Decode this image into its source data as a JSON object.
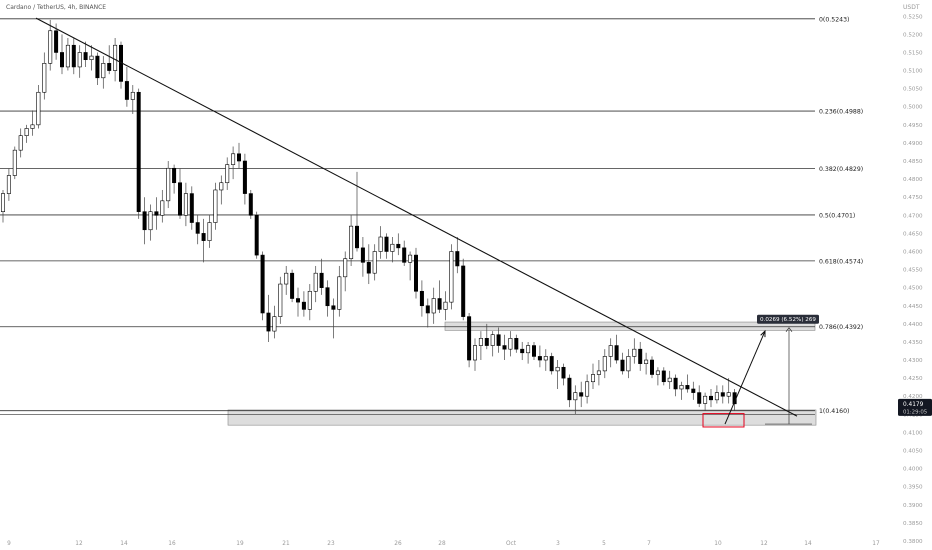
{
  "header": {
    "title": "Cardano / TetherUS, 4h, BINANCE",
    "currency": "USDT"
  },
  "colors": {
    "background": "#ffffff",
    "candle": "#000000",
    "wick": "#444444",
    "level_line": "#333333",
    "zone_fill": "#d9d9d9",
    "zone_stroke": "#888888",
    "target_box": "#e3001b",
    "axis_text": "#9a9a9a",
    "price_badge_bg": "#131722",
    "measure_label_bg": "#2a2e39"
  },
  "chart_data": {
    "type": "candlestick",
    "x_axis_labels": [
      "9",
      "12",
      "14",
      "16",
      "19",
      "21",
      "23",
      "26",
      "28",
      "Oct",
      "3",
      "5",
      "7",
      "10",
      "12",
      "14",
      "17"
    ],
    "y_axis": {
      "range": [
        0.3775,
        0.5295
      ],
      "ticks": [
        "0.5250",
        "0.5200",
        "0.5150",
        "0.5100",
        "0.5050",
        "0.5000",
        "0.4950",
        "0.4900",
        "0.4850",
        "0.4800",
        "0.4750",
        "0.4700",
        "0.4650",
        "0.4600",
        "0.4550",
        "0.4500",
        "0.4450",
        "0.4400",
        "0.4350",
        "0.4300",
        "0.4250",
        "0.4200",
        "0.4150",
        "0.4100",
        "0.4050",
        "0.4000",
        "0.3950",
        "0.3900",
        "0.3850",
        "0.3800"
      ]
    },
    "fib_levels": [
      {
        "label": "0(0.5243)",
        "value": 0.5243
      },
      {
        "label": "0.236(0.4988)",
        "value": 0.4988
      },
      {
        "label": "0.382(0.4829)",
        "value": 0.4829
      },
      {
        "label": "0.5(0.4701)",
        "value": 0.4701
      },
      {
        "label": "0.618(0.4574)",
        "value": 0.4574
      },
      {
        "label": "0.786(0.4392)",
        "value": 0.4392
      },
      {
        "label": "1(0.4160)",
        "value": 0.416
      }
    ],
    "current_price": {
      "value": "0.4179",
      "countdown": "01:29:05"
    },
    "measure": {
      "label": "0.0269 (6.52%) 269",
      "from": 0.4123,
      "to": 0.4392
    },
    "resistance_zone": {
      "low": 0.4382,
      "high": 0.4405
    },
    "support_zone": {
      "low": 0.412,
      "high": 0.4162
    },
    "candles": [
      {
        "o": 0.471,
        "h": 0.477,
        "l": 0.468,
        "c": 0.476
      },
      {
        "o": 0.476,
        "h": 0.483,
        "l": 0.474,
        "c": 0.481
      },
      {
        "o": 0.481,
        "h": 0.489,
        "l": 0.48,
        "c": 0.488
      },
      {
        "o": 0.488,
        "h": 0.494,
        "l": 0.486,
        "c": 0.492
      },
      {
        "o": 0.492,
        "h": 0.495,
        "l": 0.49,
        "c": 0.494
      },
      {
        "o": 0.494,
        "h": 0.499,
        "l": 0.492,
        "c": 0.495
      },
      {
        "o": 0.495,
        "h": 0.506,
        "l": 0.494,
        "c": 0.504
      },
      {
        "o": 0.504,
        "h": 0.515,
        "l": 0.502,
        "c": 0.512
      },
      {
        "o": 0.512,
        "h": 0.524,
        "l": 0.51,
        "c": 0.521
      },
      {
        "o": 0.521,
        "h": 0.523,
        "l": 0.513,
        "c": 0.515
      },
      {
        "o": 0.515,
        "h": 0.52,
        "l": 0.509,
        "c": 0.511
      },
      {
        "o": 0.511,
        "h": 0.519,
        "l": 0.51,
        "c": 0.517
      },
      {
        "o": 0.517,
        "h": 0.519,
        "l": 0.509,
        "c": 0.511
      },
      {
        "o": 0.511,
        "h": 0.517,
        "l": 0.508,
        "c": 0.515
      },
      {
        "o": 0.515,
        "h": 0.518,
        "l": 0.511,
        "c": 0.513
      },
      {
        "o": 0.513,
        "h": 0.517,
        "l": 0.51,
        "c": 0.514
      },
      {
        "o": 0.514,
        "h": 0.515,
        "l": 0.506,
        "c": 0.508
      },
      {
        "o": 0.508,
        "h": 0.514,
        "l": 0.505,
        "c": 0.512
      },
      {
        "o": 0.512,
        "h": 0.517,
        "l": 0.509,
        "c": 0.51
      },
      {
        "o": 0.51,
        "h": 0.519,
        "l": 0.507,
        "c": 0.517
      },
      {
        "o": 0.517,
        "h": 0.518,
        "l": 0.505,
        "c": 0.507
      },
      {
        "o": 0.507,
        "h": 0.511,
        "l": 0.5,
        "c": 0.502
      },
      {
        "o": 0.502,
        "h": 0.506,
        "l": 0.498,
        "c": 0.504
      },
      {
        "o": 0.504,
        "h": 0.505,
        "l": 0.469,
        "c": 0.471
      },
      {
        "o": 0.471,
        "h": 0.475,
        "l": 0.462,
        "c": 0.466
      },
      {
        "o": 0.466,
        "h": 0.473,
        "l": 0.463,
        "c": 0.471
      },
      {
        "o": 0.471,
        "h": 0.475,
        "l": 0.466,
        "c": 0.47
      },
      {
        "o": 0.47,
        "h": 0.477,
        "l": 0.468,
        "c": 0.474
      },
      {
        "o": 0.474,
        "h": 0.485,
        "l": 0.472,
        "c": 0.483
      },
      {
        "o": 0.483,
        "h": 0.484,
        "l": 0.476,
        "c": 0.479
      },
      {
        "o": 0.479,
        "h": 0.483,
        "l": 0.469,
        "c": 0.47
      },
      {
        "o": 0.47,
        "h": 0.479,
        "l": 0.467,
        "c": 0.476
      },
      {
        "o": 0.476,
        "h": 0.478,
        "l": 0.466,
        "c": 0.468
      },
      {
        "o": 0.468,
        "h": 0.47,
        "l": 0.462,
        "c": 0.465
      },
      {
        "o": 0.465,
        "h": 0.469,
        "l": 0.457,
        "c": 0.463
      },
      {
        "o": 0.463,
        "h": 0.47,
        "l": 0.461,
        "c": 0.468
      },
      {
        "o": 0.468,
        "h": 0.479,
        "l": 0.466,
        "c": 0.477
      },
      {
        "o": 0.477,
        "h": 0.481,
        "l": 0.473,
        "c": 0.479
      },
      {
        "o": 0.479,
        "h": 0.486,
        "l": 0.477,
        "c": 0.484
      },
      {
        "o": 0.484,
        "h": 0.489,
        "l": 0.48,
        "c": 0.487
      },
      {
        "o": 0.487,
        "h": 0.49,
        "l": 0.483,
        "c": 0.485
      },
      {
        "o": 0.485,
        "h": 0.487,
        "l": 0.473,
        "c": 0.476
      },
      {
        "o": 0.476,
        "h": 0.477,
        "l": 0.469,
        "c": 0.47
      },
      {
        "o": 0.47,
        "h": 0.471,
        "l": 0.458,
        "c": 0.459
      },
      {
        "o": 0.459,
        "h": 0.46,
        "l": 0.441,
        "c": 0.443
      },
      {
        "o": 0.443,
        "h": 0.448,
        "l": 0.435,
        "c": 0.438
      },
      {
        "o": 0.438,
        "h": 0.445,
        "l": 0.436,
        "c": 0.442
      },
      {
        "o": 0.442,
        "h": 0.453,
        "l": 0.44,
        "c": 0.451
      },
      {
        "o": 0.451,
        "h": 0.456,
        "l": 0.448,
        "c": 0.454
      },
      {
        "o": 0.454,
        "h": 0.455,
        "l": 0.446,
        "c": 0.447
      },
      {
        "o": 0.447,
        "h": 0.45,
        "l": 0.442,
        "c": 0.446
      },
      {
        "o": 0.446,
        "h": 0.449,
        "l": 0.442,
        "c": 0.444
      },
      {
        "o": 0.444,
        "h": 0.451,
        "l": 0.441,
        "c": 0.449
      },
      {
        "o": 0.449,
        "h": 0.456,
        "l": 0.446,
        "c": 0.454
      },
      {
        "o": 0.454,
        "h": 0.458,
        "l": 0.448,
        "c": 0.45
      },
      {
        "o": 0.45,
        "h": 0.452,
        "l": 0.442,
        "c": 0.445
      },
      {
        "o": 0.445,
        "h": 0.447,
        "l": 0.436,
        "c": 0.444
      },
      {
        "o": 0.444,
        "h": 0.456,
        "l": 0.442,
        "c": 0.453
      },
      {
        "o": 0.453,
        "h": 0.46,
        "l": 0.449,
        "c": 0.458
      },
      {
        "o": 0.458,
        "h": 0.47,
        "l": 0.456,
        "c": 0.467
      },
      {
        "o": 0.467,
        "h": 0.482,
        "l": 0.46,
        "c": 0.461
      },
      {
        "o": 0.461,
        "h": 0.464,
        "l": 0.453,
        "c": 0.457
      },
      {
        "o": 0.457,
        "h": 0.462,
        "l": 0.451,
        "c": 0.454
      },
      {
        "o": 0.454,
        "h": 0.462,
        "l": 0.452,
        "c": 0.46
      },
      {
        "o": 0.46,
        "h": 0.467,
        "l": 0.458,
        "c": 0.464
      },
      {
        "o": 0.464,
        "h": 0.465,
        "l": 0.458,
        "c": 0.46
      },
      {
        "o": 0.46,
        "h": 0.464,
        "l": 0.457,
        "c": 0.462
      },
      {
        "o": 0.462,
        "h": 0.465,
        "l": 0.459,
        "c": 0.461
      },
      {
        "o": 0.461,
        "h": 0.463,
        "l": 0.456,
        "c": 0.457
      },
      {
        "o": 0.457,
        "h": 0.46,
        "l": 0.452,
        "c": 0.459
      },
      {
        "o": 0.459,
        "h": 0.461,
        "l": 0.447,
        "c": 0.449
      },
      {
        "o": 0.449,
        "h": 0.452,
        "l": 0.442,
        "c": 0.445
      },
      {
        "o": 0.445,
        "h": 0.447,
        "l": 0.439,
        "c": 0.443
      },
      {
        "o": 0.443,
        "h": 0.45,
        "l": 0.44,
        "c": 0.447
      },
      {
        "o": 0.447,
        "h": 0.452,
        "l": 0.443,
        "c": 0.444
      },
      {
        "o": 0.444,
        "h": 0.449,
        "l": 0.441,
        "c": 0.446
      },
      {
        "o": 0.446,
        "h": 0.462,
        "l": 0.444,
        "c": 0.46
      },
      {
        "o": 0.46,
        "h": 0.464,
        "l": 0.454,
        "c": 0.456
      },
      {
        "o": 0.456,
        "h": 0.458,
        "l": 0.441,
        "c": 0.442
      },
      {
        "o": 0.442,
        "h": 0.443,
        "l": 0.428,
        "c": 0.43
      },
      {
        "o": 0.43,
        "h": 0.436,
        "l": 0.427,
        "c": 0.434
      },
      {
        "o": 0.434,
        "h": 0.438,
        "l": 0.43,
        "c": 0.436
      },
      {
        "o": 0.436,
        "h": 0.44,
        "l": 0.433,
        "c": 0.434
      },
      {
        "o": 0.434,
        "h": 0.438,
        "l": 0.431,
        "c": 0.437
      },
      {
        "o": 0.437,
        "h": 0.439,
        "l": 0.432,
        "c": 0.434
      },
      {
        "o": 0.434,
        "h": 0.437,
        "l": 0.43,
        "c": 0.433
      },
      {
        "o": 0.433,
        "h": 0.438,
        "l": 0.431,
        "c": 0.436
      },
      {
        "o": 0.436,
        "h": 0.437,
        "l": 0.432,
        "c": 0.433
      },
      {
        "o": 0.433,
        "h": 0.435,
        "l": 0.43,
        "c": 0.432
      },
      {
        "o": 0.432,
        "h": 0.435,
        "l": 0.429,
        "c": 0.434
      },
      {
        "o": 0.434,
        "h": 0.435,
        "l": 0.43,
        "c": 0.431
      },
      {
        "o": 0.431,
        "h": 0.434,
        "l": 0.428,
        "c": 0.43
      },
      {
        "o": 0.43,
        "h": 0.433,
        "l": 0.427,
        "c": 0.431
      },
      {
        "o": 0.431,
        "h": 0.432,
        "l": 0.426,
        "c": 0.427
      },
      {
        "o": 0.427,
        "h": 0.43,
        "l": 0.422,
        "c": 0.428
      },
      {
        "o": 0.428,
        "h": 0.429,
        "l": 0.423,
        "c": 0.425
      },
      {
        "o": 0.425,
        "h": 0.426,
        "l": 0.417,
        "c": 0.419
      },
      {
        "o": 0.419,
        "h": 0.423,
        "l": 0.415,
        "c": 0.421
      },
      {
        "o": 0.421,
        "h": 0.424,
        "l": 0.417,
        "c": 0.42
      },
      {
        "o": 0.42,
        "h": 0.426,
        "l": 0.418,
        "c": 0.424
      },
      {
        "o": 0.424,
        "h": 0.429,
        "l": 0.422,
        "c": 0.426
      },
      {
        "o": 0.426,
        "h": 0.43,
        "l": 0.423,
        "c": 0.427
      },
      {
        "o": 0.427,
        "h": 0.433,
        "l": 0.425,
        "c": 0.431
      },
      {
        "o": 0.431,
        "h": 0.436,
        "l": 0.428,
        "c": 0.434
      },
      {
        "o": 0.434,
        "h": 0.437,
        "l": 0.429,
        "c": 0.43
      },
      {
        "o": 0.43,
        "h": 0.432,
        "l": 0.426,
        "c": 0.427
      },
      {
        "o": 0.427,
        "h": 0.433,
        "l": 0.425,
        "c": 0.431
      },
      {
        "o": 0.431,
        "h": 0.436,
        "l": 0.429,
        "c": 0.433
      },
      {
        "o": 0.433,
        "h": 0.435,
        "l": 0.427,
        "c": 0.429
      },
      {
        "o": 0.429,
        "h": 0.432,
        "l": 0.426,
        "c": 0.43
      },
      {
        "o": 0.43,
        "h": 0.431,
        "l": 0.425,
        "c": 0.426
      },
      {
        "o": 0.426,
        "h": 0.428,
        "l": 0.423,
        "c": 0.427
      },
      {
        "o": 0.427,
        "h": 0.428,
        "l": 0.423,
        "c": 0.424
      },
      {
        "o": 0.424,
        "h": 0.427,
        "l": 0.422,
        "c": 0.425
      },
      {
        "o": 0.425,
        "h": 0.426,
        "l": 0.42,
        "c": 0.422
      },
      {
        "o": 0.422,
        "h": 0.424,
        "l": 0.419,
        "c": 0.423
      },
      {
        "o": 0.423,
        "h": 0.426,
        "l": 0.421,
        "c": 0.422
      },
      {
        "o": 0.422,
        "h": 0.424,
        "l": 0.419,
        "c": 0.421
      },
      {
        "o": 0.421,
        "h": 0.423,
        "l": 0.417,
        "c": 0.418
      },
      {
        "o": 0.418,
        "h": 0.421,
        "l": 0.416,
        "c": 0.42
      },
      {
        "o": 0.42,
        "h": 0.422,
        "l": 0.417,
        "c": 0.419
      },
      {
        "o": 0.419,
        "h": 0.423,
        "l": 0.418,
        "c": 0.421
      },
      {
        "o": 0.421,
        "h": 0.423,
        "l": 0.418,
        "c": 0.42
      },
      {
        "o": 0.42,
        "h": 0.425,
        "l": 0.418,
        "c": 0.421
      },
      {
        "o": 0.421,
        "h": 0.422,
        "l": 0.416,
        "c": 0.4179
      }
    ]
  }
}
